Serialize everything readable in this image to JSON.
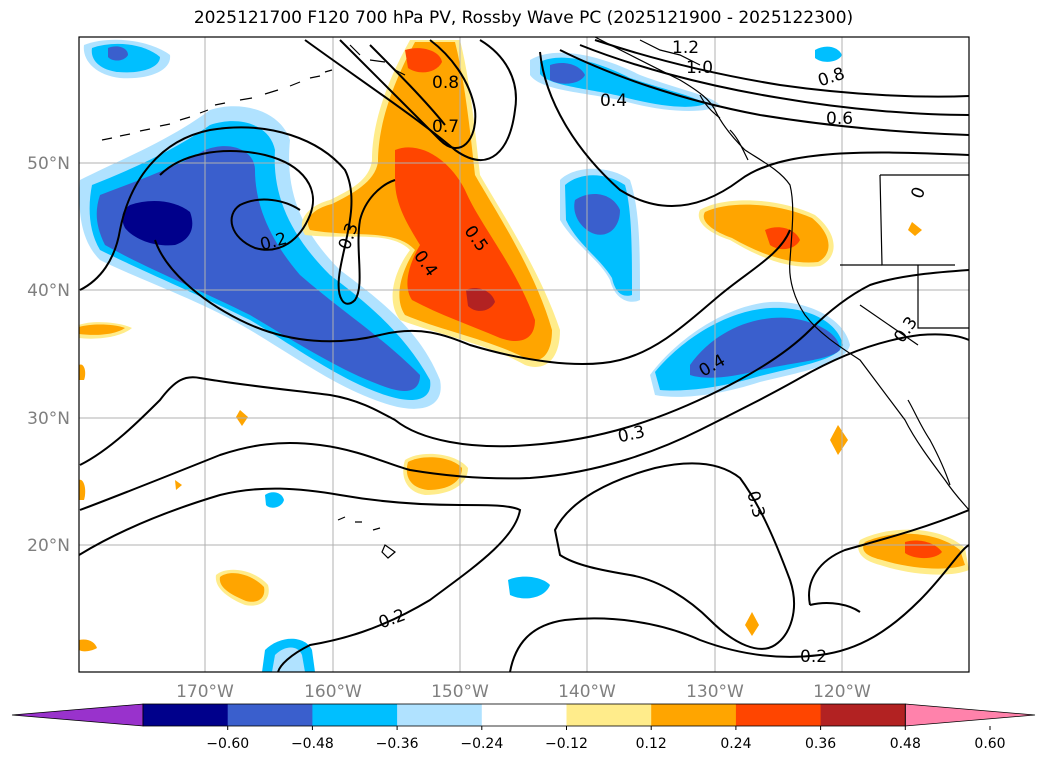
{
  "title": "2025121700 F120 700 hPa PV, Rossby Wave PC (2025121900 - 2025122300)",
  "map": {
    "lat_labels": [
      "50°N",
      "40°N",
      "30°N",
      "20°N"
    ],
    "lon_labels": [
      "170°W",
      "160°W",
      "150°W",
      "140°W",
      "130°W",
      "120°W"
    ],
    "contour_labels": [
      "1.2",
      "1.0",
      "0.8",
      "0.8",
      "0.7",
      "0.6",
      "0.5",
      "0.4",
      "0.4",
      "0.4",
      "0.3",
      "0.3",
      "0.3",
      "0.3",
      "0.2",
      "0.2",
      "0.2",
      "0"
    ]
  },
  "colorbar": {
    "ticks": [
      "−0.60",
      "−0.48",
      "−0.36",
      "−0.24",
      "−0.12",
      "0.12",
      "0.24",
      "0.36",
      "0.48",
      "0.60"
    ],
    "colors": [
      "#9932cc",
      "#00008b",
      "#3a5fcd",
      "#00bfff",
      "#b0e2ff",
      "#ffffff",
      "#ffec8b",
      "#ffa500",
      "#ff4500",
      "#b22222",
      "#ff82ab"
    ]
  }
}
